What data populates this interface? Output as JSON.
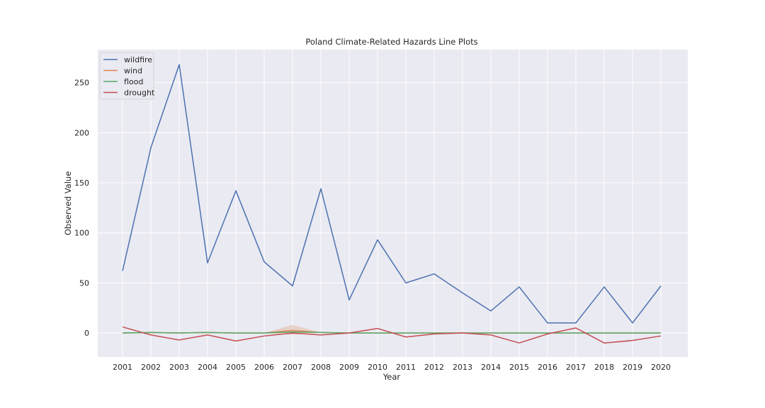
{
  "chart_data": {
    "type": "line",
    "title": "Poland Climate-Related Hazards Line Plots",
    "xlabel": "Year",
    "ylabel": "Observed Value",
    "categories": [
      "2001",
      "2002",
      "2003",
      "2004",
      "2005",
      "2006",
      "2007",
      "2008",
      "2009",
      "2010",
      "2011",
      "2012",
      "2013",
      "2014",
      "2015",
      "2016",
      "2017",
      "2018",
      "2019",
      "2020"
    ],
    "ylim": [
      -24,
      283
    ],
    "yticks": [
      0,
      50,
      100,
      150,
      200,
      250
    ],
    "grid": true,
    "legend_position": "top-left",
    "series": [
      {
        "name": "wildfire",
        "color": "#4c72b0",
        "values": [
          62,
          185,
          268,
          70,
          142,
          71,
          47,
          144,
          33,
          93,
          50,
          59,
          40,
          22,
          46,
          10,
          10,
          46,
          10,
          47
        ]
      },
      {
        "name": "wind",
        "color": "#dd8452",
        "values": [
          0,
          0.5,
          0,
          0.5,
          0,
          0,
          2.5,
          0.5,
          0,
          0,
          0,
          0,
          0,
          0,
          0,
          0,
          0,
          0,
          0,
          0
        ],
        "band_upper": [
          0,
          0.5,
          0,
          0.5,
          0,
          0,
          8,
          0.5,
          0,
          0,
          0,
          0,
          0,
          0,
          0,
          0,
          0,
          0,
          0,
          0
        ],
        "band_lower": [
          0,
          0.5,
          0,
          0.5,
          0,
          0,
          -2,
          0.5,
          0,
          0,
          0,
          0,
          0,
          0,
          0,
          0,
          0,
          0,
          0,
          0
        ]
      },
      {
        "name": "flood",
        "color": "#55a868",
        "values": [
          0,
          0.5,
          0,
          0.5,
          0,
          0,
          1,
          0.5,
          0,
          0,
          0,
          0,
          0,
          0,
          0,
          0,
          0,
          0,
          0,
          0
        ]
      },
      {
        "name": "drought",
        "color": "#c44e52",
        "values": [
          6,
          -2,
          -7,
          -2,
          -8,
          -3,
          0,
          -2,
          0,
          4.5,
          -4,
          -1,
          0,
          -2,
          -10,
          -1,
          5,
          -10,
          -7.5,
          -3
        ]
      }
    ]
  }
}
